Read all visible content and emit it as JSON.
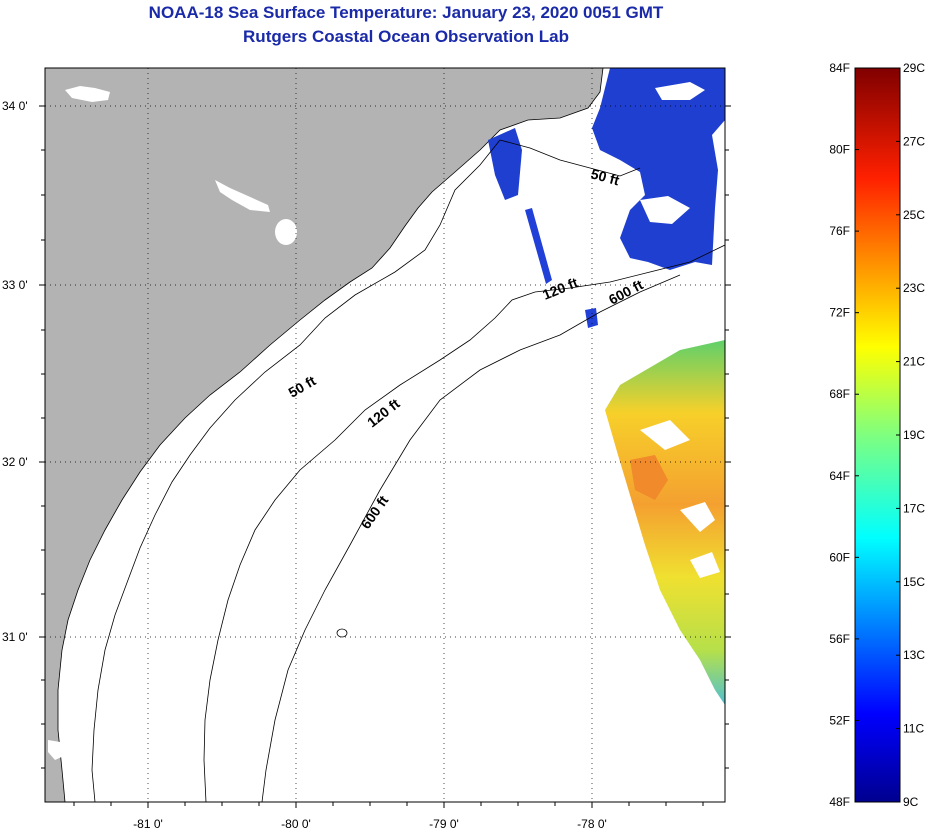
{
  "header": {
    "title": "NOAA-18 Sea Surface Temperature:  January 23, 2020 0051 GMT",
    "subtitle": "Rutgers Coastal Ocean Observation Lab"
  },
  "map": {
    "lat_labels": [
      "34 0'",
      "33 0'",
      "32 0'",
      "31 0'"
    ],
    "lon_labels": [
      "-81 0'",
      "-80 0'",
      "-79 0'",
      "-78 0'"
    ],
    "contour_labels": [
      "50 ft",
      "120 ft",
      "600 ft",
      "50 ft",
      "120 ft",
      "600 ft"
    ]
  },
  "colorbar": {
    "fahrenheit_labels": [
      "84F",
      "80F",
      "76F",
      "72F",
      "68F",
      "64F",
      "60F",
      "56F",
      "52F",
      "48F"
    ],
    "celsius_labels": [
      "29C",
      "27C",
      "25C",
      "23C",
      "21C",
      "19C",
      "17C",
      "15C",
      "13C",
      "11C",
      "9C"
    ]
  },
  "colors": {
    "land": "#b3b3b3",
    "title": "#1a2aa8"
  }
}
